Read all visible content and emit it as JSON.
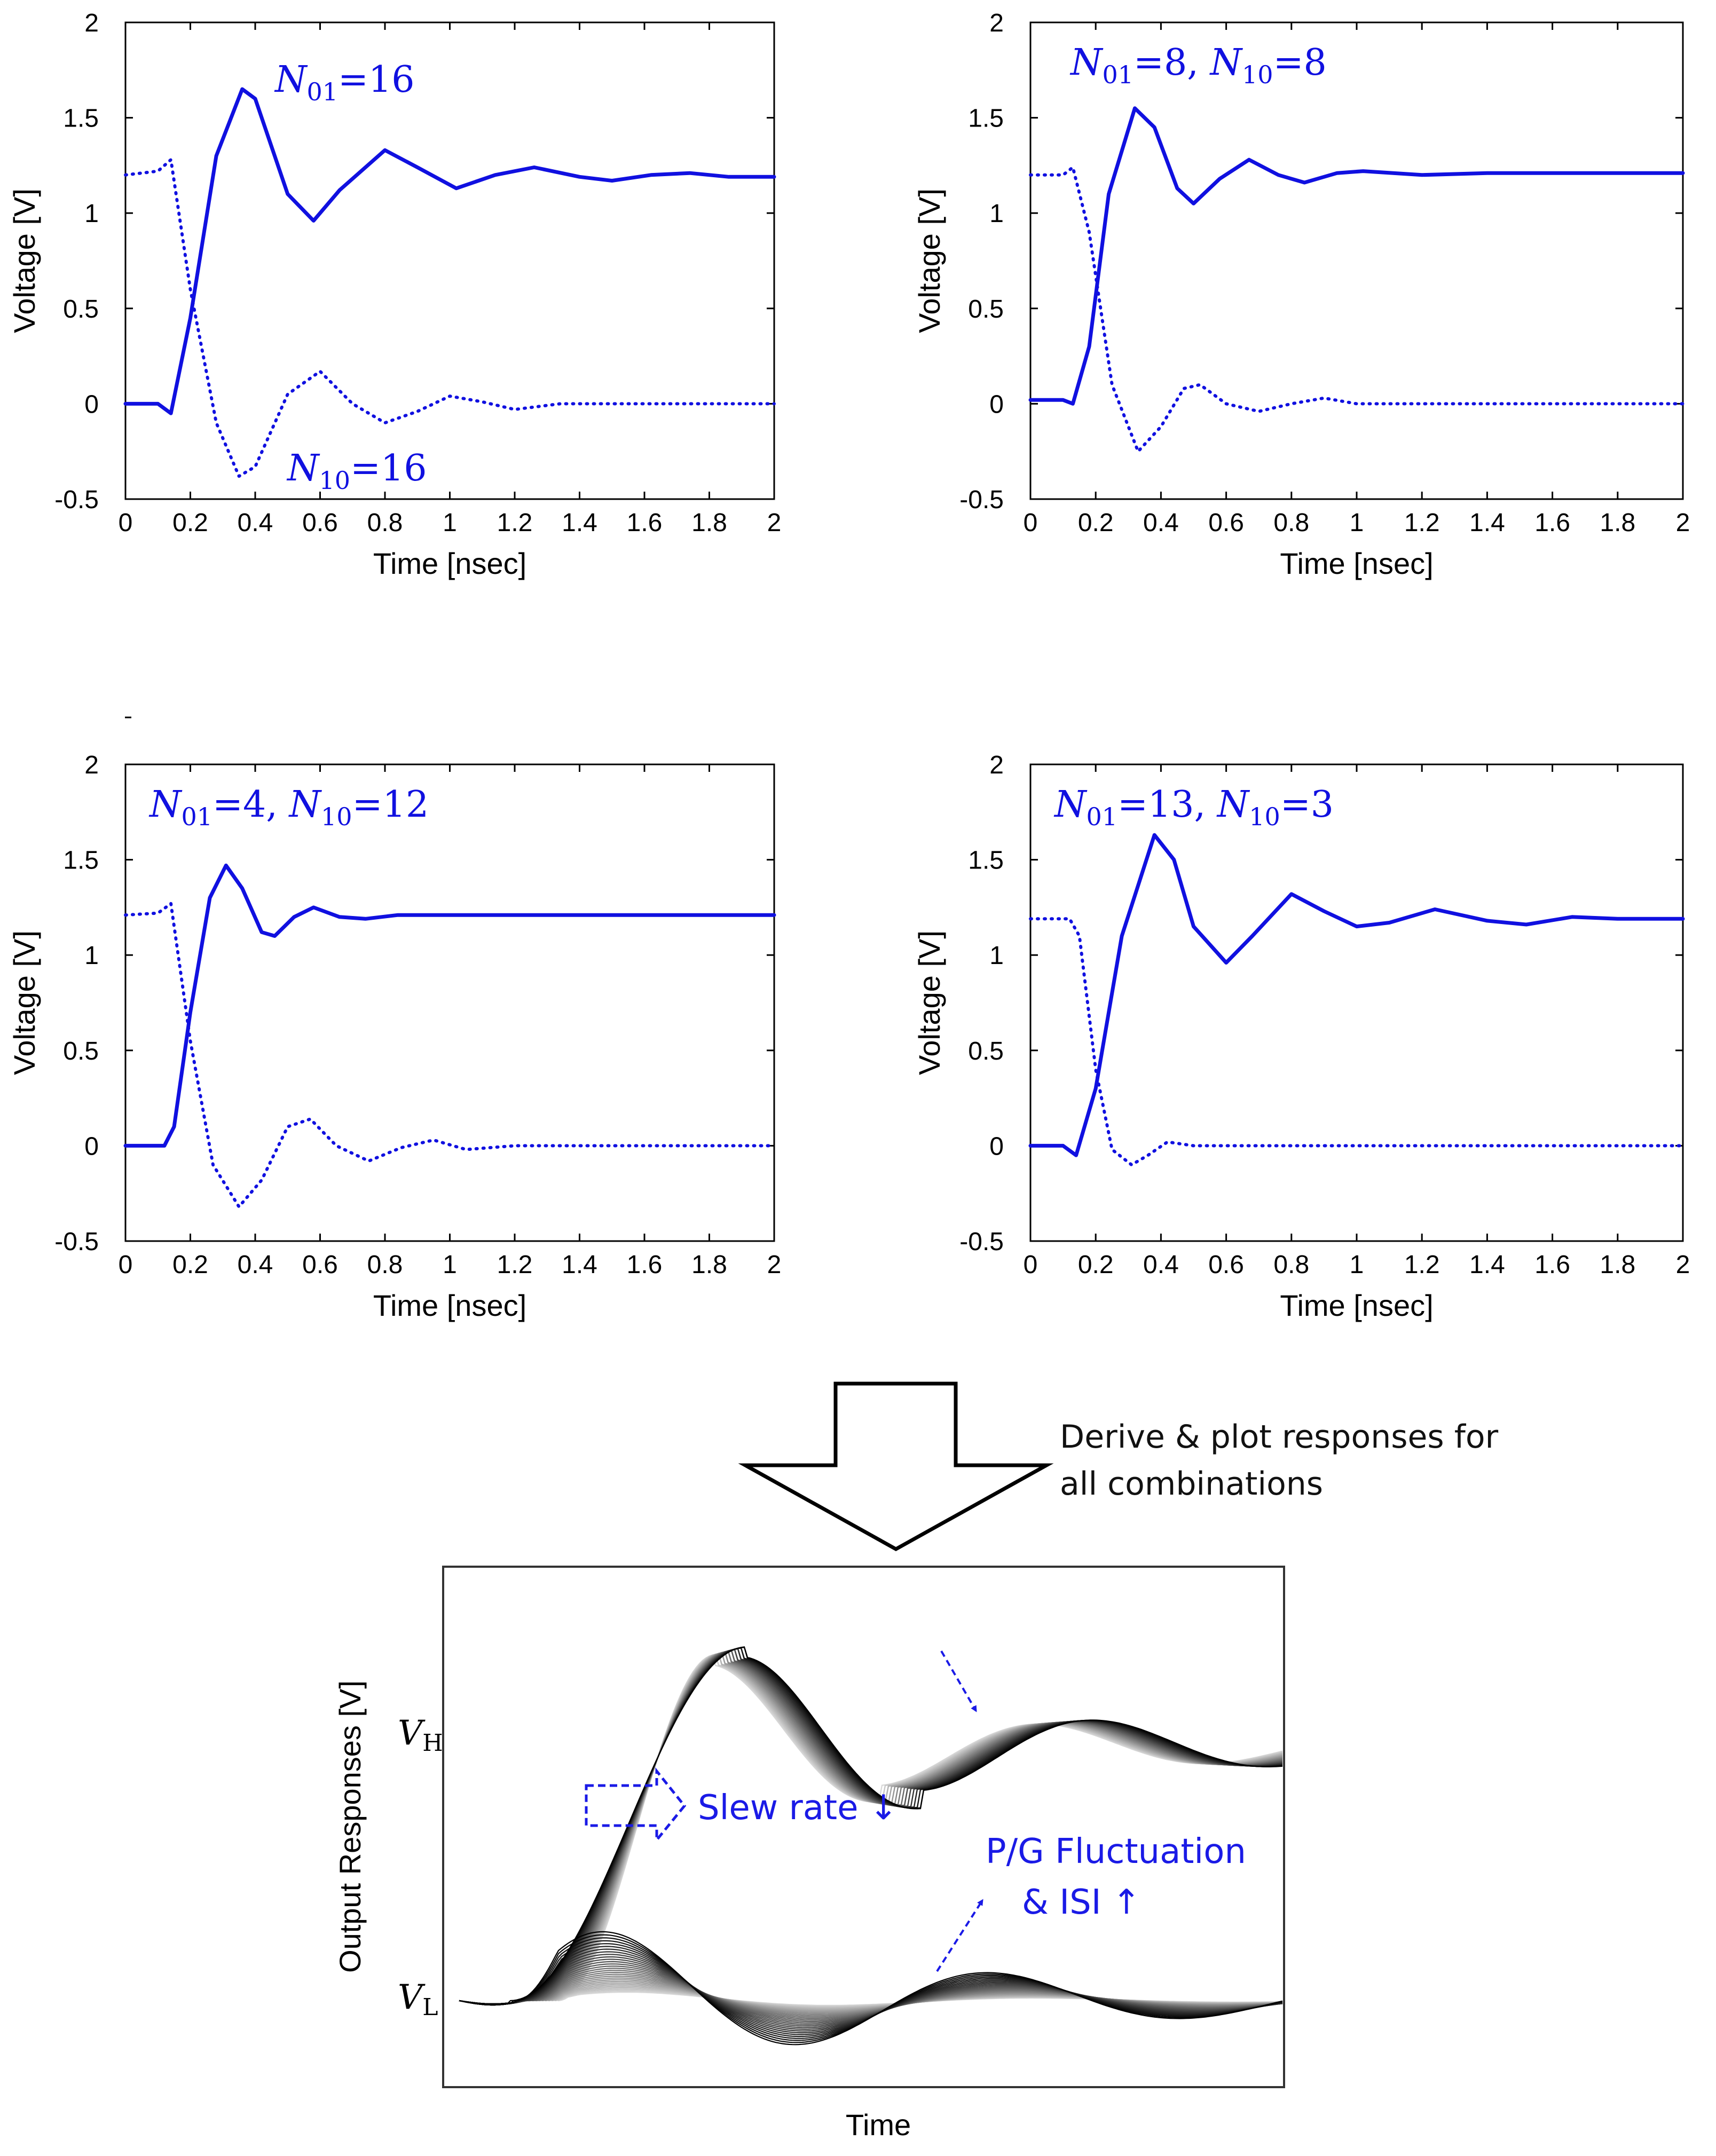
{
  "chart_data": [
    {
      "type": "line",
      "id": "p1",
      "xlabel": "Time [nsec]",
      "ylabel": "Voltage [V]",
      "xlim": [
        0,
        2
      ],
      "ylim": [
        -0.5,
        2
      ],
      "xticks": [
        "0",
        "0.2",
        "0.4",
        "0.6",
        "0.8",
        "1",
        "1.2",
        "1.4",
        "1.6",
        "1.8",
        "2"
      ],
      "yticks": [
        "-0.5",
        "0",
        "0.5",
        "1",
        "1.5",
        "2"
      ],
      "annotations": [
        {
          "base": "N",
          "sub": "01",
          "rest": "=16"
        },
        {
          "base": "N",
          "sub": "10",
          "rest": "=16"
        }
      ],
      "series": [
        {
          "name": "rising (solid)",
          "style": "solid",
          "color": "#1010e0",
          "points": [
            [
              0,
              0
            ],
            [
              0.1,
              0
            ],
            [
              0.14,
              -0.05
            ],
            [
              0.2,
              0.45
            ],
            [
              0.28,
              1.3
            ],
            [
              0.36,
              1.65
            ],
            [
              0.4,
              1.6
            ],
            [
              0.5,
              1.1
            ],
            [
              0.58,
              0.96
            ],
            [
              0.66,
              1.12
            ],
            [
              0.8,
              1.33
            ],
            [
              0.9,
              1.24
            ],
            [
              1.02,
              1.13
            ],
            [
              1.14,
              1.2
            ],
            [
              1.26,
              1.24
            ],
            [
              1.4,
              1.19
            ],
            [
              1.5,
              1.17
            ],
            [
              1.62,
              1.2
            ],
            [
              1.74,
              1.21
            ],
            [
              1.86,
              1.19
            ],
            [
              2,
              1.19
            ]
          ]
        },
        {
          "name": "falling (dotted)",
          "style": "dotted",
          "color": "#1010e0",
          "points": [
            [
              0,
              1.2
            ],
            [
              0.1,
              1.22
            ],
            [
              0.14,
              1.28
            ],
            [
              0.2,
              0.6
            ],
            [
              0.28,
              -0.1
            ],
            [
              0.35,
              -0.38
            ],
            [
              0.4,
              -0.33
            ],
            [
              0.5,
              0.05
            ],
            [
              0.6,
              0.17
            ],
            [
              0.7,
              0.0
            ],
            [
              0.8,
              -0.1
            ],
            [
              0.9,
              -0.04
            ],
            [
              1.0,
              0.04
            ],
            [
              1.1,
              0.01
            ],
            [
              1.2,
              -0.03
            ],
            [
              1.34,
              0.0
            ],
            [
              1.5,
              0.0
            ],
            [
              2,
              0.0
            ]
          ]
        }
      ]
    },
    {
      "type": "line",
      "id": "p2",
      "xlabel": "Time [nsec]",
      "ylabel": "Voltage [V]",
      "xlim": [
        0,
        2
      ],
      "ylim": [
        -0.5,
        2
      ],
      "xticks": [
        "0",
        "0.2",
        "0.4",
        "0.6",
        "0.8",
        "1",
        "1.2",
        "1.4",
        "1.6",
        "1.8",
        "2"
      ],
      "yticks": [
        "-0.5",
        "0",
        "0.5",
        "1",
        "1.5",
        "2"
      ],
      "annotations": [
        {
          "base": "N",
          "sub": "01",
          "rest": "=8, ",
          "base2": "N",
          "sub2": "10",
          "rest2": "=8"
        }
      ],
      "series": [
        {
          "name": "rising (solid)",
          "style": "solid",
          "color": "#1010e0",
          "points": [
            [
              0,
              0.02
            ],
            [
              0.1,
              0.02
            ],
            [
              0.13,
              0.0
            ],
            [
              0.18,
              0.3
            ],
            [
              0.24,
              1.1
            ],
            [
              0.32,
              1.55
            ],
            [
              0.38,
              1.45
            ],
            [
              0.45,
              1.13
            ],
            [
              0.5,
              1.05
            ],
            [
              0.58,
              1.18
            ],
            [
              0.67,
              1.28
            ],
            [
              0.76,
              1.2
            ],
            [
              0.84,
              1.16
            ],
            [
              0.94,
              1.21
            ],
            [
              1.02,
              1.22
            ],
            [
              1.2,
              1.2
            ],
            [
              1.4,
              1.21
            ],
            [
              2,
              1.21
            ]
          ]
        },
        {
          "name": "falling (dotted)",
          "style": "dotted",
          "color": "#1010e0",
          "points": [
            [
              0,
              1.2
            ],
            [
              0.1,
              1.2
            ],
            [
              0.13,
              1.24
            ],
            [
              0.18,
              0.9
            ],
            [
              0.25,
              0.1
            ],
            [
              0.33,
              -0.25
            ],
            [
              0.4,
              -0.12
            ],
            [
              0.47,
              0.08
            ],
            [
              0.52,
              0.1
            ],
            [
              0.6,
              0.0
            ],
            [
              0.7,
              -0.04
            ],
            [
              0.8,
              0.0
            ],
            [
              0.9,
              0.03
            ],
            [
              1.0,
              0.0
            ],
            [
              1.2,
              0.0
            ],
            [
              2,
              0.0
            ]
          ]
        }
      ]
    },
    {
      "type": "line",
      "id": "p3",
      "xlabel": "Time [nsec]",
      "ylabel": "Voltage [V]",
      "xlim": [
        0,
        2
      ],
      "ylim": [
        -0.5,
        2
      ],
      "xticks": [
        "0",
        "0.2",
        "0.4",
        "0.6",
        "0.8",
        "1",
        "1.2",
        "1.4",
        "1.6",
        "1.8",
        "2"
      ],
      "yticks": [
        "-0.5",
        "0",
        "0.5",
        "1",
        "1.5",
        "2"
      ],
      "annotations": [
        {
          "base": "N",
          "sub": "01",
          "rest": "=4, ",
          "base2": "N",
          "sub2": "10",
          "rest2": "=12"
        }
      ],
      "series": [
        {
          "name": "rising (solid)",
          "style": "solid",
          "color": "#1010e0",
          "points": [
            [
              0,
              0.0
            ],
            [
              0.12,
              0.0
            ],
            [
              0.15,
              0.1
            ],
            [
              0.2,
              0.7
            ],
            [
              0.26,
              1.3
            ],
            [
              0.31,
              1.47
            ],
            [
              0.36,
              1.35
            ],
            [
              0.42,
              1.12
            ],
            [
              0.46,
              1.1
            ],
            [
              0.52,
              1.2
            ],
            [
              0.58,
              1.25
            ],
            [
              0.66,
              1.2
            ],
            [
              0.74,
              1.19
            ],
            [
              0.84,
              1.21
            ],
            [
              1.0,
              1.21
            ],
            [
              1.3,
              1.21
            ],
            [
              2,
              1.21
            ]
          ]
        },
        {
          "name": "falling (dotted)",
          "style": "dotted",
          "color": "#1010e0",
          "points": [
            [
              0,
              1.21
            ],
            [
              0.1,
              1.22
            ],
            [
              0.14,
              1.27
            ],
            [
              0.2,
              0.55
            ],
            [
              0.27,
              -0.1
            ],
            [
              0.35,
              -0.32
            ],
            [
              0.42,
              -0.18
            ],
            [
              0.5,
              0.1
            ],
            [
              0.57,
              0.14
            ],
            [
              0.65,
              0.0
            ],
            [
              0.75,
              -0.08
            ],
            [
              0.85,
              -0.01
            ],
            [
              0.95,
              0.03
            ],
            [
              1.05,
              -0.02
            ],
            [
              1.2,
              0.0
            ],
            [
              2,
              0.0
            ]
          ]
        }
      ]
    },
    {
      "type": "line",
      "id": "p4",
      "xlabel": "Time [nsec]",
      "ylabel": "Voltage [V]",
      "xlim": [
        0,
        2
      ],
      "ylim": [
        -0.5,
        2
      ],
      "xticks": [
        "0",
        "0.2",
        "0.4",
        "0.6",
        "0.8",
        "1",
        "1.2",
        "1.4",
        "1.6",
        "1.8",
        "2"
      ],
      "yticks": [
        "-0.5",
        "0",
        "0.5",
        "1",
        "1.5",
        "2"
      ],
      "annotations": [
        {
          "base": "N",
          "sub": "01",
          "rest": "=13, ",
          "base2": "N",
          "sub2": "10",
          "rest2": "=3"
        }
      ],
      "series": [
        {
          "name": "rising (solid)",
          "style": "solid",
          "color": "#1010e0",
          "points": [
            [
              0,
              0.0
            ],
            [
              0.1,
              0.0
            ],
            [
              0.14,
              -0.05
            ],
            [
              0.2,
              0.3
            ],
            [
              0.28,
              1.1
            ],
            [
              0.38,
              1.63
            ],
            [
              0.44,
              1.5
            ],
            [
              0.5,
              1.15
            ],
            [
              0.6,
              0.96
            ],
            [
              0.68,
              1.1
            ],
            [
              0.8,
              1.32
            ],
            [
              0.9,
              1.23
            ],
            [
              1.0,
              1.15
            ],
            [
              1.1,
              1.17
            ],
            [
              1.24,
              1.24
            ],
            [
              1.4,
              1.18
            ],
            [
              1.52,
              1.16
            ],
            [
              1.66,
              1.2
            ],
            [
              1.8,
              1.19
            ],
            [
              2,
              1.19
            ]
          ]
        },
        {
          "name": "falling (dotted)",
          "style": "dotted",
          "color": "#1010e0",
          "points": [
            [
              0,
              1.19
            ],
            [
              0.12,
              1.19
            ],
            [
              0.15,
              1.1
            ],
            [
              0.2,
              0.4
            ],
            [
              0.25,
              -0.02
            ],
            [
              0.31,
              -0.1
            ],
            [
              0.36,
              -0.05
            ],
            [
              0.42,
              0.02
            ],
            [
              0.5,
              0.0
            ],
            [
              0.6,
              0.0
            ],
            [
              2,
              0.0
            ]
          ]
        }
      ]
    },
    {
      "type": "line",
      "id": "p5",
      "title": "",
      "xlabel": "Time",
      "ylabel": "Output Responses  [V]",
      "ytick_labels": [
        {
          "base": "V",
          "sub": "H",
          "level": "high"
        },
        {
          "base": "V",
          "sub": "L",
          "level": "low"
        }
      ],
      "description": "Family of output responses for all N01/N10 combinations, shaded from light gray to black",
      "series_count": 30,
      "annotations": {
        "slew": "Slew rate ↓",
        "pg_line1": "P/G Fluctuation",
        "pg_line2": "& ISI ↑"
      }
    }
  ],
  "arrow_note": {
    "line1": "Derive & plot responses for",
    "line2": "all combinations"
  }
}
